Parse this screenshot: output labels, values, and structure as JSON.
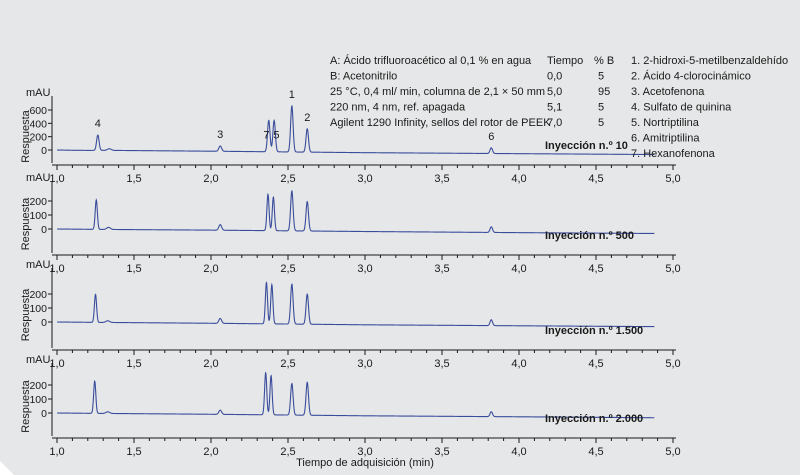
{
  "conditions": {
    "mobile_phase": [
      "A: Ácido trifluoroacético al 0,1 % en agua",
      "B: Acetonitrilo"
    ],
    "settings": [
      "25 °C, 0,4 ml/ min, columna de 2,1 × 50 mm",
      "220 nm, 4 nm, ref. apagada",
      "Agilent 1290 Infinity, sellos del rotor de PEEK"
    ]
  },
  "gradient": {
    "headers": [
      "Tiempo",
      "% B"
    ],
    "rows": [
      [
        "0,0",
        "5"
      ],
      [
        "5,0",
        "95"
      ],
      [
        "5,1",
        "5"
      ],
      [
        "7,0",
        "5"
      ]
    ]
  },
  "compounds": [
    "1. 2-hidroxi-5-metilbenzaldehído",
    "2. Ácido 4-clorocinámico",
    "3. Acetofenona",
    "4. Sulfato de quinina",
    "5. Nortriptilina",
    "6. Amitriptilina",
    "7. Hexanofenona"
  ],
  "chart_data": {
    "type": "line",
    "xlabel": "Tiempo de adquisición (min)",
    "ylabel": "Respuesta",
    "yunit": "mAU",
    "x_ticks": [
      "1,0",
      "1,5",
      "2,0",
      "2,5",
      "3,0",
      "3,5",
      "4,0",
      "4,5",
      "5,0"
    ],
    "xlim": [
      1.0,
      5.0
    ],
    "panels": [
      {
        "label": "Inyección n.º 10",
        "y_ticks": [
          "600",
          "400",
          "200",
          "0"
        ],
        "ylim": [
          -120,
          760
        ],
        "baseline": [
          [
            1.0,
            0
          ],
          [
            1.1,
            -4
          ],
          [
            1.2,
            -6
          ],
          [
            1.3,
            -5
          ],
          [
            2.0,
            -18
          ],
          [
            3.0,
            -40
          ],
          [
            4.0,
            -55
          ],
          [
            4.88,
            -68
          ]
        ],
        "peaks": [
          {
            "x": 1.265,
            "height": 230,
            "width": 0.008
          },
          {
            "x": 1.34,
            "height": 25,
            "width": 0.012
          },
          {
            "x": 2.06,
            "height": 80,
            "width": 0.009
          },
          {
            "x": 2.375,
            "height": 470,
            "width": 0.008
          },
          {
            "x": 2.41,
            "height": 470,
            "width": 0.008
          },
          {
            "x": 2.525,
            "height": 690,
            "width": 0.008
          },
          {
            "x": 2.625,
            "height": 350,
            "width": 0.008
          },
          {
            "x": 3.82,
            "height": 85,
            "width": 0.008
          }
        ],
        "peak_labels": [
          {
            "text": "4",
            "x": 1.265
          },
          {
            "text": "3",
            "x": 2.06
          },
          {
            "text": "7",
            "x": 2.36
          },
          {
            "text": "5",
            "x": 2.425
          },
          {
            "text": "1",
            "x": 2.525
          },
          {
            "text": "2",
            "x": 2.625
          },
          {
            "text": "6",
            "x": 3.82
          }
        ]
      },
      {
        "label": "Inyección n.º 500",
        "y_ticks": [
          "200",
          "100",
          "0"
        ],
        "ylim": [
          -100,
          300
        ],
        "baseline": [
          [
            1.0,
            0
          ],
          [
            1.3,
            -3
          ],
          [
            2.0,
            -8
          ],
          [
            3.0,
            -18
          ],
          [
            4.0,
            -26
          ],
          [
            4.88,
            -32
          ]
        ],
        "peaks": [
          {
            "x": 1.255,
            "height": 210,
            "width": 0.007
          },
          {
            "x": 1.335,
            "height": 15,
            "width": 0.012
          },
          {
            "x": 2.06,
            "height": 40,
            "width": 0.009
          },
          {
            "x": 2.37,
            "height": 260,
            "width": 0.007
          },
          {
            "x": 2.405,
            "height": 240,
            "width": 0.007
          },
          {
            "x": 2.525,
            "height": 285,
            "width": 0.008
          },
          {
            "x": 2.625,
            "height": 210,
            "width": 0.008
          },
          {
            "x": 3.82,
            "height": 40,
            "width": 0.008
          }
        ]
      },
      {
        "label": "Inyección n.º 1.500",
        "y_ticks": [
          "200",
          "100",
          "0"
        ],
        "ylim": [
          -100,
          300
        ],
        "baseline": [
          [
            1.0,
            0
          ],
          [
            1.3,
            -3
          ],
          [
            2.0,
            -9
          ],
          [
            3.0,
            -20
          ],
          [
            4.0,
            -27
          ],
          [
            4.88,
            -33
          ]
        ],
        "peaks": [
          {
            "x": 1.25,
            "height": 200,
            "width": 0.007
          },
          {
            "x": 1.33,
            "height": 12,
            "width": 0.012
          },
          {
            "x": 2.06,
            "height": 35,
            "width": 0.009
          },
          {
            "x": 2.36,
            "height": 295,
            "width": 0.007
          },
          {
            "x": 2.395,
            "height": 280,
            "width": 0.007
          },
          {
            "x": 2.525,
            "height": 285,
            "width": 0.008
          },
          {
            "x": 2.625,
            "height": 215,
            "width": 0.008
          },
          {
            "x": 3.82,
            "height": 42,
            "width": 0.008
          }
        ]
      },
      {
        "label": "Inyección n.º 2.000",
        "y_ticks": [
          "200",
          "100",
          "0"
        ],
        "ylim": [
          -100,
          300
        ],
        "baseline": [
          [
            1.0,
            0
          ],
          [
            1.3,
            -3
          ],
          [
            2.0,
            -9
          ],
          [
            3.0,
            -20
          ],
          [
            4.0,
            -27
          ],
          [
            4.88,
            -34
          ]
        ],
        "peaks": [
          {
            "x": 1.245,
            "height": 230,
            "width": 0.007
          },
          {
            "x": 1.33,
            "height": 12,
            "width": 0.012
          },
          {
            "x": 2.06,
            "height": 30,
            "width": 0.009
          },
          {
            "x": 2.355,
            "height": 300,
            "width": 0.007
          },
          {
            "x": 2.39,
            "height": 280,
            "width": 0.007
          },
          {
            "x": 2.525,
            "height": 225,
            "width": 0.008
          },
          {
            "x": 2.625,
            "height": 235,
            "width": 0.008
          },
          {
            "x": 3.82,
            "height": 35,
            "width": 0.008
          }
        ]
      }
    ]
  },
  "colors": {
    "background": "#e6e7e8",
    "trace": "#3a4d9c",
    "axis": "#1a1a1a"
  }
}
